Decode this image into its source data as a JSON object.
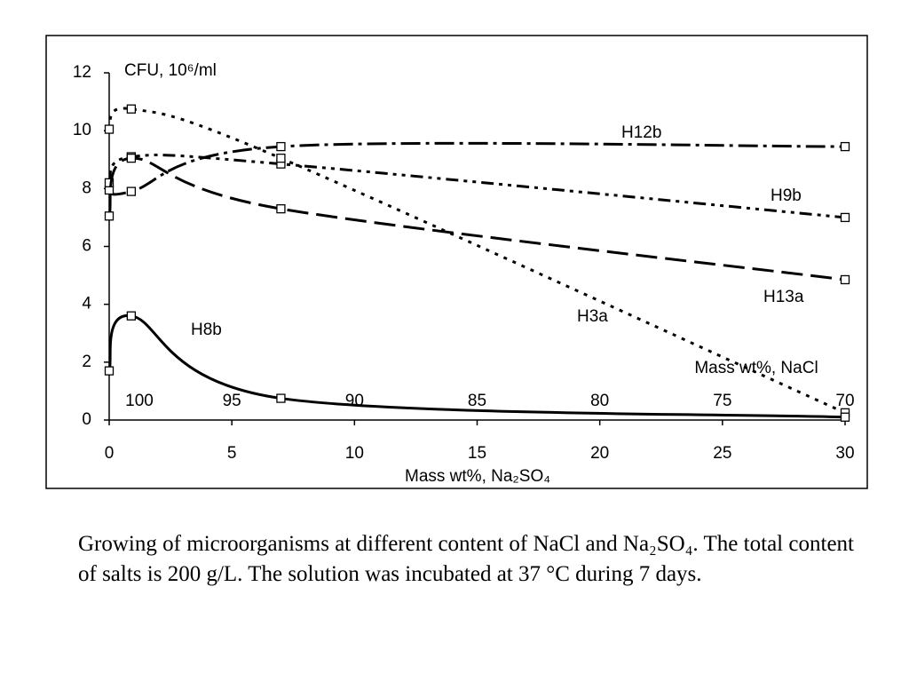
{
  "chart_data": {
    "type": "line",
    "ylabel": "CFU, 10⁶/ml",
    "xlabel": "Mass wt%, Na₂SO₄",
    "x2label": "Mass wt%, NaCl",
    "x": [
      0,
      0.9,
      7,
      30
    ],
    "xlim": [
      0,
      30
    ],
    "xticks": [
      0,
      5,
      10,
      15,
      20,
      25,
      30
    ],
    "x2lim": [
      100,
      70
    ],
    "x2ticks": [
      100,
      95,
      90,
      85,
      80,
      75,
      70
    ],
    "ylim": [
      0,
      12
    ],
    "yticks": [
      0,
      2,
      4,
      6,
      8,
      10,
      12
    ],
    "series": [
      {
        "name": "H12b",
        "color": "#000000",
        "dash": "22,6,4,6",
        "values": [
          7.95,
          7.9,
          9.45,
          9.45
        ]
      },
      {
        "name": "H9b",
        "color": "#000000",
        "dash": "14,6,4,6,4,6",
        "values": [
          8.2,
          9.1,
          8.85,
          7.0
        ]
      },
      {
        "name": "H13a",
        "color": "#000000",
        "dash": "24,9",
        "values": [
          7.05,
          9.05,
          7.3,
          4.85
        ]
      },
      {
        "name": "H3a",
        "color": "#000000",
        "dash": "4,7",
        "values": [
          10.05,
          10.75,
          9.05,
          0.25
        ]
      },
      {
        "name": "H8b",
        "color": "#000000",
        "dash": "",
        "values": [
          1.7,
          3.6,
          0.75,
          0.1
        ]
      }
    ]
  },
  "caption": "Growing of microorganisms at different content of NaCl and Na₂SO₄. The total content of salts is 200 g/L. The solution was incubated at 37 °C during 7 days."
}
